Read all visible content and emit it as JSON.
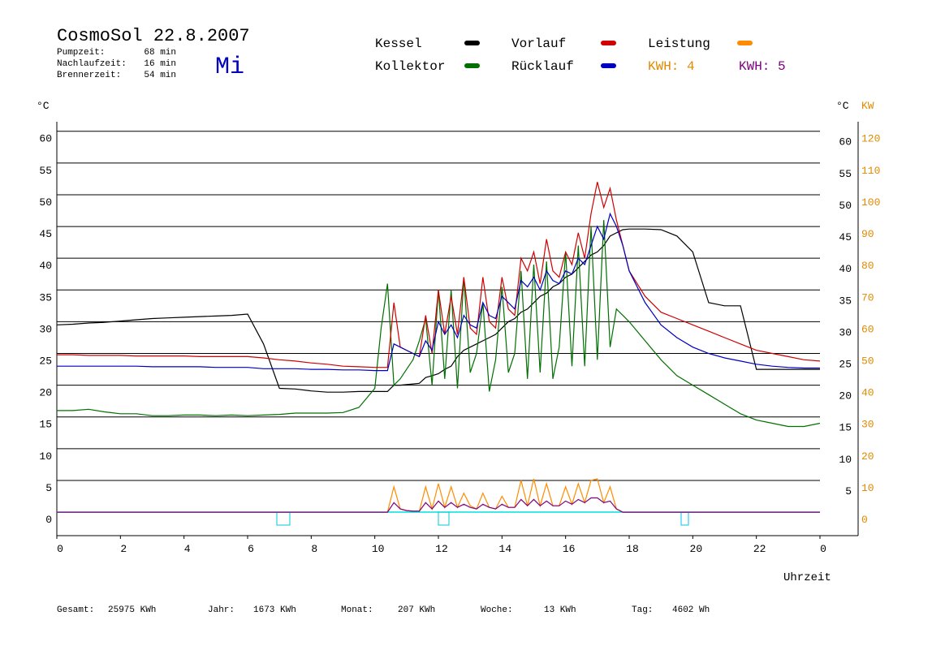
{
  "chart_data": {
    "type": "line",
    "title": "CosmoSol 22.8.2007",
    "weekday": "Mi",
    "info": [
      [
        "Pumpzeit:",
        "68 min"
      ],
      [
        "Nachlaufzeit:",
        "16 min"
      ],
      [
        "Brennerzeit:",
        "54 min"
      ]
    ],
    "kwh_labels": [
      "KWH: 4",
      "KWH: 5"
    ],
    "x_label": "Uhrzeit",
    "y_unit": "°C",
    "y2_units": [
      "°C",
      "KW"
    ],
    "footer": [
      [
        "Gesamt:",
        "25975 KWh"
      ],
      [
        "Jahr:",
        "1673 KWh"
      ],
      [
        "Monat:",
        "207 KWh"
      ],
      [
        "Woche:",
        "13 KWh"
      ],
      [
        "Tag:",
        "4602 Wh"
      ]
    ],
    "xlim": [
      0,
      25.2
    ],
    "xticks": [
      0,
      2,
      4,
      6,
      8,
      10,
      12,
      14,
      16,
      18,
      20,
      22,
      {
        "value": 24,
        "label": "0"
      }
    ],
    "ylim": [
      -3.7,
      61.5
    ],
    "yticks": [
      0,
      5,
      10,
      15,
      20,
      25,
      30,
      35,
      40,
      45,
      50,
      55,
      60
    ],
    "yticks_right": [
      5,
      10,
      15,
      20,
      25,
      30,
      35,
      40,
      45,
      50,
      55,
      60
    ],
    "y2lim": [
      -7.4,
      123
    ],
    "y2ticks": [
      0,
      10,
      20,
      30,
      40,
      50,
      60,
      70,
      80,
      90,
      100,
      110,
      120
    ],
    "grid": true,
    "x": [
      0,
      0.5,
      1,
      1.5,
      2,
      2.5,
      3,
      3.5,
      4,
      4.5,
      5,
      5.5,
      6,
      6.5,
      7,
      7.5,
      8,
      8.5,
      9,
      9.5,
      10,
      10.2,
      10.4,
      10.6,
      10.8,
      11,
      11.2,
      11.4,
      11.6,
      11.8,
      12,
      12.2,
      12.4,
      12.6,
      12.8,
      13,
      13.2,
      13.4,
      13.6,
      13.8,
      14,
      14.2,
      14.4,
      14.6,
      14.8,
      15,
      15.2,
      15.4,
      15.6,
      15.8,
      16,
      16.2,
      16.4,
      16.6,
      16.8,
      17,
      17.2,
      17.4,
      17.6,
      17.8,
      18,
      18.5,
      19,
      19.5,
      20,
      20.5,
      21,
      21.5,
      22,
      22.5,
      23,
      23.5,
      24
    ],
    "series": [
      {
        "name": "Kessel",
        "color": "#000000",
        "values": [
          29.5,
          29.6,
          29.8,
          29.9,
          30.1,
          30.3,
          30.5,
          30.6,
          30.7,
          30.8,
          30.9,
          31,
          31.2,
          26.5,
          19.5,
          19.4,
          19.1,
          18.9,
          18.9,
          19,
          19,
          19,
          19,
          20,
          20,
          20.1,
          20.2,
          20.3,
          21.2,
          21.5,
          21.8,
          22.5,
          23,
          24.5,
          25.5,
          26,
          26.5,
          27,
          27.5,
          28,
          29,
          30,
          30.5,
          31.5,
          32,
          33,
          34,
          34.5,
          35.5,
          36,
          37,
          37.5,
          38.5,
          39.5,
          40.5,
          41,
          42,
          43.5,
          44,
          44.5,
          44.6,
          44.6,
          44.5,
          43.5,
          41,
          33,
          32.5,
          32.5,
          22.5,
          22.5,
          22.5,
          22.5,
          22.5
        ]
      },
      {
        "name": "Kollektor",
        "color": "#007000",
        "values": [
          16,
          16,
          16.2,
          15.8,
          15.5,
          15.5,
          15.2,
          15.2,
          15.3,
          15.3,
          15.2,
          15.3,
          15.2,
          15.3,
          15.4,
          15.6,
          15.6,
          15.6,
          15.7,
          16.5,
          19.5,
          29,
          36,
          20,
          21,
          22.5,
          24,
          27,
          30.5,
          20,
          35,
          21,
          35,
          19.5,
          37,
          22,
          25,
          33,
          19,
          24,
          35.5,
          22,
          25,
          38,
          21,
          39,
          22,
          39.5,
          21,
          26,
          41,
          23,
          42,
          23,
          45,
          24,
          46,
          26,
          32,
          31,
          30,
          27,
          24,
          21.5,
          20,
          18.5,
          17,
          15.5,
          14.5,
          14,
          13.5,
          13.5,
          14
        ]
      },
      {
        "name": "Vorlauf",
        "color": "#d00000",
        "values": [
          24.8,
          24.8,
          24.7,
          24.7,
          24.7,
          24.6,
          24.6,
          24.6,
          24.6,
          24.5,
          24.5,
          24.5,
          24.5,
          24.3,
          24,
          23.8,
          23.5,
          23.3,
          23,
          22.9,
          22.8,
          22.8,
          22.8,
          33,
          26,
          25.5,
          25,
          24.5,
          31,
          25,
          35,
          28,
          34,
          28,
          37,
          29,
          28,
          37,
          30,
          29,
          37,
          32,
          31,
          40,
          38,
          41,
          36,
          43,
          38,
          37,
          41,
          39,
          44,
          40,
          47,
          52,
          48,
          51,
          46,
          42,
          38,
          34,
          31.5,
          30.5,
          29.5,
          28.5,
          27.5,
          26.5,
          25.5,
          25,
          24.5,
          24,
          23.8
        ]
      },
      {
        "name": "Rücklauf",
        "color": "#0000c0",
        "values": [
          23,
          23,
          23,
          23,
          23,
          23,
          22.9,
          22.9,
          22.9,
          22.9,
          22.8,
          22.8,
          22.8,
          22.6,
          22.6,
          22.6,
          22.5,
          22.5,
          22.4,
          22.4,
          22.3,
          22.3,
          22.3,
          26.5,
          26,
          25.5,
          25,
          24.5,
          27,
          25.5,
          30,
          28,
          29.5,
          27.5,
          31,
          29.5,
          29,
          33,
          31,
          30.5,
          34,
          33,
          32,
          36.5,
          35.5,
          37,
          35,
          38,
          36.5,
          36,
          38,
          37.5,
          40,
          39,
          42,
          45,
          43,
          47,
          45,
          42,
          38,
          33,
          29.5,
          27.5,
          26,
          25,
          24.3,
          23.8,
          23.3,
          23,
          22.8,
          22.7,
          22.7
        ]
      },
      {
        "name": "Leistung",
        "color": "#ff8c00",
        "axis": "y2",
        "values": [
          0,
          0,
          0,
          0,
          0,
          0,
          0,
          0,
          0,
          0,
          0,
          0,
          0,
          0,
          0,
          0,
          0,
          0,
          0,
          0,
          0,
          0,
          0,
          8,
          1,
          0.5,
          0.3,
          0.3,
          8,
          1,
          9,
          1.5,
          8,
          1.5,
          6,
          2,
          1,
          6,
          1.5,
          1,
          5,
          1.5,
          1.5,
          10,
          2,
          10.5,
          2,
          9,
          2,
          2,
          8,
          2.5,
          9,
          3,
          10,
          10.5,
          3,
          8,
          1,
          0,
          0,
          0,
          0,
          0,
          0,
          0,
          0,
          0,
          0,
          0,
          0,
          0,
          0
        ]
      },
      {
        "color": "#800080",
        "axis": "y2",
        "values": [
          0,
          0,
          0,
          0,
          0,
          0,
          0,
          0,
          0,
          0,
          0,
          0,
          0,
          0,
          0,
          0,
          0,
          0,
          0,
          0,
          0,
          0,
          0,
          3,
          1,
          0.5,
          0.3,
          0.3,
          3,
          1,
          3.5,
          1.5,
          3,
          1.5,
          2.5,
          1.5,
          1,
          2.5,
          1.5,
          1,
          2.5,
          1.5,
          1.5,
          4,
          2,
          4,
          2,
          3.5,
          2,
          2,
          3.5,
          2.5,
          4,
          3,
          4.5,
          4.5,
          3,
          3.5,
          1,
          0,
          0,
          0,
          0,
          0,
          0,
          0,
          0,
          0,
          0,
          0,
          0,
          0,
          0
        ]
      }
    ]
  }
}
